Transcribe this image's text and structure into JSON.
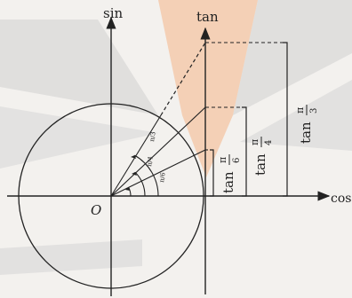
{
  "axes": {
    "x_label": "cos",
    "y_label": "sin",
    "tan_label": "tan",
    "origin_label": "O"
  },
  "angle_labels": [
    "π/6",
    "π/4",
    "π/3"
  ],
  "tan_labels": [
    {
      "func": "tan",
      "num": "π",
      "den": "6"
    },
    {
      "func": "tan",
      "num": "π",
      "den": "4"
    },
    {
      "func": "tan",
      "num": "π",
      "den": "3"
    }
  ],
  "colors": {
    "background": "#f3f1ee",
    "stripe": "#c9c9c9",
    "accent": "#f4c8a8",
    "ink": "#222222"
  }
}
